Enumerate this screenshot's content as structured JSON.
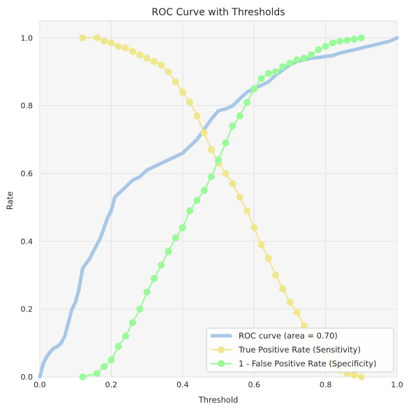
{
  "chart_data": {
    "type": "line",
    "title": "ROC Curve with Thresholds",
    "xlabel": "Threshold",
    "ylabel": "Rate",
    "xlim": [
      0,
      1
    ],
    "ylim": [
      0,
      1.05
    ],
    "xticks": [
      "0.0",
      "0.2",
      "0.4",
      "0.6",
      "0.8",
      "1.0"
    ],
    "yticks": [
      "0.0",
      "0.2",
      "0.4",
      "0.6",
      "0.8",
      "1.0"
    ],
    "grid": true,
    "legend_position": "lower-right",
    "series": [
      {
        "name": "ROC curve (area = 0.70)",
        "color": "#a7c7e7",
        "marker": "none",
        "x": [
          0.0,
          0.01,
          0.02,
          0.03,
          0.04,
          0.05,
          0.06,
          0.07,
          0.08,
          0.09,
          0.1,
          0.11,
          0.12,
          0.13,
          0.14,
          0.15,
          0.16,
          0.17,
          0.18,
          0.19,
          0.2,
          0.21,
          0.22,
          0.23,
          0.24,
          0.25,
          0.26,
          0.27,
          0.28,
          0.29,
          0.3,
          0.32,
          0.34,
          0.36,
          0.38,
          0.4,
          0.42,
          0.44,
          0.46,
          0.48,
          0.5,
          0.52,
          0.54,
          0.56,
          0.58,
          0.6,
          0.62,
          0.64,
          0.66,
          0.68,
          0.7,
          0.72,
          0.74,
          0.76,
          0.78,
          0.8,
          0.82,
          0.84,
          0.86,
          0.88,
          0.9,
          0.92,
          0.94,
          0.96,
          0.98,
          1.0
        ],
        "y": [
          0.0,
          0.04,
          0.06,
          0.075,
          0.085,
          0.09,
          0.1,
          0.12,
          0.16,
          0.2,
          0.22,
          0.26,
          0.32,
          0.335,
          0.35,
          0.37,
          0.39,
          0.41,
          0.44,
          0.47,
          0.49,
          0.53,
          0.54,
          0.55,
          0.56,
          0.57,
          0.58,
          0.585,
          0.59,
          0.6,
          0.61,
          0.62,
          0.63,
          0.64,
          0.65,
          0.66,
          0.68,
          0.7,
          0.73,
          0.76,
          0.785,
          0.79,
          0.8,
          0.82,
          0.84,
          0.85,
          0.86,
          0.87,
          0.89,
          0.905,
          0.92,
          0.93,
          0.935,
          0.94,
          0.942,
          0.945,
          0.948,
          0.955,
          0.96,
          0.965,
          0.97,
          0.975,
          0.98,
          0.985,
          0.99,
          1.0
        ]
      },
      {
        "name": "True Positive Rate (Sensitivity)",
        "color": "#f0e68c",
        "marker": "circle",
        "x": [
          0.12,
          0.16,
          0.18,
          0.2,
          0.22,
          0.24,
          0.26,
          0.28,
          0.3,
          0.32,
          0.34,
          0.36,
          0.38,
          0.4,
          0.42,
          0.44,
          0.46,
          0.48,
          0.5,
          0.52,
          0.54,
          0.56,
          0.58,
          0.6,
          0.62,
          0.64,
          0.66,
          0.68,
          0.7,
          0.72,
          0.74,
          0.76,
          0.78,
          0.8,
          0.82,
          0.84,
          0.86,
          0.88,
          0.9
        ],
        "y": [
          1.0,
          1.0,
          0.99,
          0.985,
          0.975,
          0.97,
          0.96,
          0.95,
          0.94,
          0.93,
          0.92,
          0.9,
          0.87,
          0.84,
          0.81,
          0.77,
          0.72,
          0.67,
          0.63,
          0.6,
          0.57,
          0.53,
          0.49,
          0.44,
          0.39,
          0.35,
          0.3,
          0.26,
          0.22,
          0.19,
          0.15,
          0.12,
          0.09,
          0.07,
          0.04,
          0.02,
          0.01,
          0.005,
          0.0
        ]
      },
      {
        "name": "1 - False Positive Rate (Specificity)",
        "color": "#98fb98",
        "marker": "circle",
        "x": [
          0.12,
          0.16,
          0.18,
          0.2,
          0.22,
          0.24,
          0.26,
          0.28,
          0.3,
          0.32,
          0.34,
          0.36,
          0.38,
          0.4,
          0.42,
          0.44,
          0.46,
          0.48,
          0.5,
          0.52,
          0.54,
          0.56,
          0.58,
          0.6,
          0.62,
          0.64,
          0.66,
          0.68,
          0.7,
          0.72,
          0.74,
          0.76,
          0.78,
          0.8,
          0.82,
          0.84,
          0.86,
          0.88,
          0.9
        ],
        "y": [
          0.0,
          0.01,
          0.03,
          0.05,
          0.09,
          0.12,
          0.16,
          0.2,
          0.25,
          0.29,
          0.33,
          0.37,
          0.41,
          0.44,
          0.49,
          0.52,
          0.55,
          0.59,
          0.64,
          0.69,
          0.74,
          0.77,
          0.81,
          0.85,
          0.88,
          0.895,
          0.9,
          0.915,
          0.925,
          0.935,
          0.94,
          0.95,
          0.965,
          0.975,
          0.985,
          0.99,
          0.993,
          0.996,
          1.0
        ]
      }
    ]
  }
}
